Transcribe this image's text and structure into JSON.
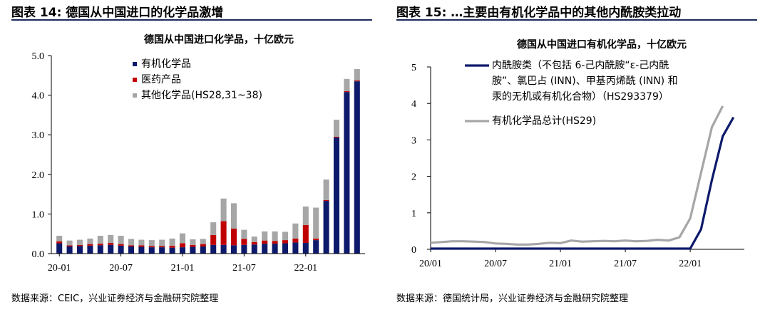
{
  "left": {
    "figure_title": "图表 14:  德国从中国进口的化学品激增",
    "source": "数据来源：CEIC，兴业证券经济与金融研究院整理"
  },
  "right": {
    "figure_title": "图表 15:  …主要由有机化学品中的其他内酰胺类拉动",
    "source": "数据来源：德国统计局，兴业证券经济与金融研究院整理"
  },
  "chart_data": [
    {
      "type": "bar",
      "stacked": true,
      "title": "德国从中国进口化学品，十亿欧元",
      "ylim": [
        0,
        5
      ],
      "y_ticks": [
        "0.0",
        "1.0",
        "2.0",
        "3.0",
        "4.0",
        "5.0"
      ],
      "x_tick_labels": [
        "20-01",
        "20-07",
        "21-01",
        "21-07",
        "22-01"
      ],
      "x_tick_index": [
        0,
        6,
        12,
        18,
        24
      ],
      "legend_position": "top-left",
      "colors": [
        "#0d1a6b",
        "#c00000",
        "#a6a6a6"
      ],
      "series": [
        {
          "name": "有机化学品",
          "values": [
            0.26,
            0.18,
            0.19,
            0.2,
            0.21,
            0.22,
            0.2,
            0.18,
            0.17,
            0.16,
            0.16,
            0.15,
            0.16,
            0.17,
            0.18,
            0.22,
            0.22,
            0.21,
            0.22,
            0.23,
            0.25,
            0.25,
            0.26,
            0.28,
            0.27,
            0.34,
            1.33,
            2.93,
            4.08,
            4.35
          ]
        },
        {
          "name": "医药产品",
          "values": [
            0.05,
            0.03,
            0.03,
            0.04,
            0.04,
            0.05,
            0.04,
            0.03,
            0.04,
            0.03,
            0.03,
            0.05,
            0.1,
            0.05,
            0.06,
            0.25,
            0.6,
            0.42,
            0.15,
            0.06,
            0.08,
            0.07,
            0.08,
            0.1,
            0.45,
            0.04,
            0.02,
            0.02,
            0.02,
            0.02
          ]
        },
        {
          "name": "其他化学品(HS28,31~38)",
          "values": [
            0.14,
            0.12,
            0.13,
            0.14,
            0.2,
            0.2,
            0.21,
            0.16,
            0.14,
            0.15,
            0.16,
            0.18,
            0.25,
            0.14,
            0.13,
            0.32,
            0.57,
            0.64,
            0.23,
            0.14,
            0.23,
            0.24,
            0.21,
            0.38,
            0.47,
            0.78,
            0.52,
            0.43,
            0.31,
            0.29
          ]
        }
      ]
    },
    {
      "type": "line",
      "title": "德国从中国进口有机化学品，十亿欧元",
      "ylim": [
        0,
        5
      ],
      "y_ticks": [
        "0",
        "1",
        "2",
        "3",
        "4",
        "5"
      ],
      "x_tick_labels": [
        "20/01",
        "20/07",
        "21/01",
        "21/07",
        "22/01"
      ],
      "x_tick_index": [
        0,
        6,
        12,
        18,
        24
      ],
      "legend_position": "top-left",
      "colors": [
        "#0d1a6b",
        "#a6a6a6"
      ],
      "series": [
        {
          "name": "内酰胺类（不包括 6-己内酰胺“ε-己内酰胺”、氯巴占 (INN)、甲基丙烯酰 (INN) 和汞的无机或有机化合物）（HS293379）",
          "legend_lines": [
            "内酰胺类（不包括 6-己内酰胺“ε-己内酰",
            "胺”、氯巴占 (INN)、甲基丙烯酰 (INN) 和",
            "汞的无机或有机化合物）（HS293379）"
          ],
          "values": [
            0.02,
            0.02,
            0.02,
            0.02,
            0.02,
            0.02,
            0.02,
            0.02,
            0.02,
            0.02,
            0.02,
            0.02,
            0.02,
            0.02,
            0.02,
            0.02,
            0.02,
            0.02,
            0.02,
            0.02,
            0.02,
            0.02,
            0.02,
            0.02,
            0.02,
            0.55,
            1.9,
            3.1,
            3.62
          ]
        },
        {
          "name": "有机化学品总计(HS29)",
          "legend_lines": [
            "有机化学品总计(HS29)"
          ],
          "values": [
            0.18,
            0.2,
            0.22,
            0.22,
            0.21,
            0.2,
            0.16,
            0.15,
            0.13,
            0.13,
            0.15,
            0.18,
            0.17,
            0.24,
            0.21,
            0.22,
            0.23,
            0.22,
            0.24,
            0.22,
            0.23,
            0.26,
            0.24,
            0.33,
            0.85,
            2.1,
            3.35,
            3.93
          ]
        }
      ]
    }
  ]
}
